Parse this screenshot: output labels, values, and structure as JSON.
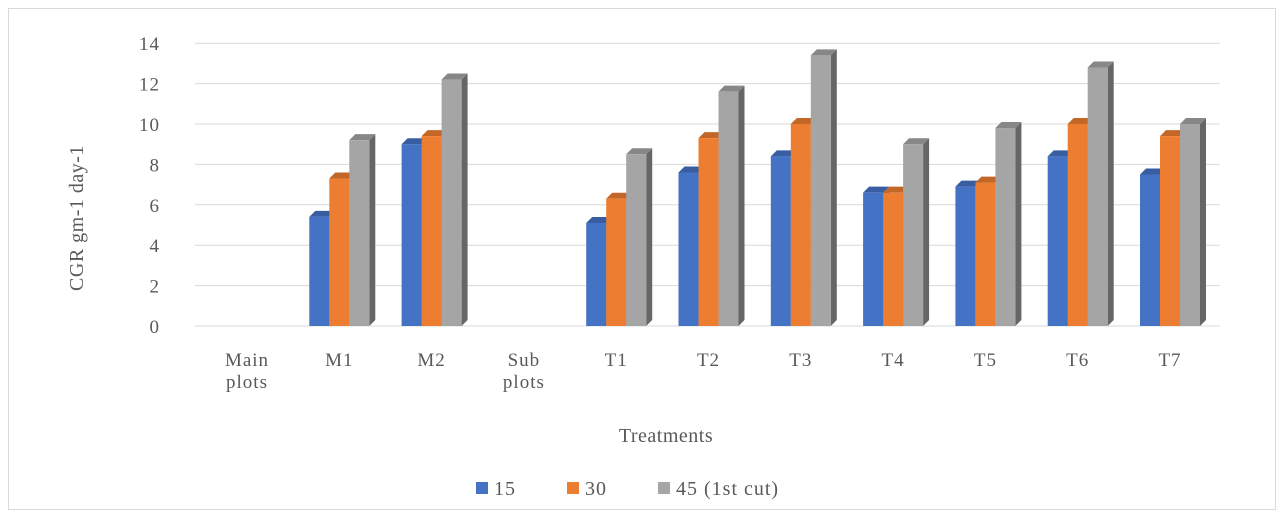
{
  "chart_data": {
    "type": "bar",
    "subtype": "3d-clustered-column",
    "title": "",
    "xlabel": "Treatments",
    "ylabel": "CGR gm-1 day-1",
    "ylim": [
      0,
      14
    ],
    "yticks": [
      0,
      2,
      4,
      6,
      8,
      10,
      12,
      14
    ],
    "grid": true,
    "legend_position": "bottom",
    "categories": [
      [
        "Main",
        "plots"
      ],
      [
        "M1"
      ],
      [
        "M2"
      ],
      [
        "Sub",
        "plots"
      ],
      [
        "T1"
      ],
      [
        "T2"
      ],
      [
        "T3"
      ],
      [
        "T4"
      ],
      [
        "T5"
      ],
      [
        "T6"
      ],
      [
        "T7"
      ]
    ],
    "series": [
      {
        "name": "15",
        "color": "#4472c4",
        "values": [
          null,
          5.4,
          9.0,
          null,
          5.1,
          7.6,
          8.4,
          6.6,
          6.9,
          8.4,
          7.5
        ]
      },
      {
        "name": "30",
        "color": "#ed7d31",
        "values": [
          null,
          7.3,
          9.4,
          null,
          6.3,
          9.3,
          10.0,
          6.6,
          7.1,
          10.0,
          9.4
        ]
      },
      {
        "name": "45 (1st cut)",
        "color": "#a5a5a5",
        "values": [
          null,
          9.2,
          12.2,
          null,
          8.5,
          11.6,
          13.4,
          9.0,
          9.8,
          12.8,
          10.0
        ]
      }
    ]
  }
}
